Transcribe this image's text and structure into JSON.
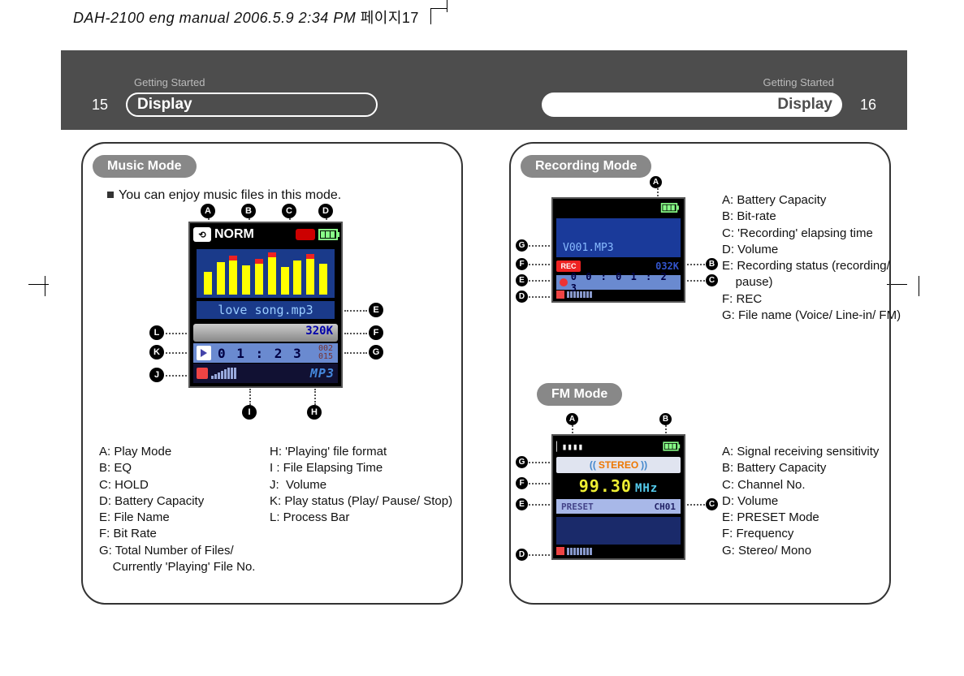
{
  "header_file": "DAH-2100 eng manual  2006.5.9 2:34 PM",
  "header_page": "페이지17",
  "section": "Getting Started",
  "display": "Display",
  "page_left_no": "15",
  "page_right_no": "16",
  "music": {
    "title": "Music Mode",
    "intro": "You can enjoy music files in this mode.",
    "norm": "NORM",
    "filename": "love song.mp3",
    "bitrate": "320K",
    "time": "0 1 : 2 3",
    "count_top": "002",
    "count_bot": "015",
    "mp3": "MP3",
    "legend_left": "A: Play Mode\nB: EQ\nC: HOLD\nD: Battery Capacity\nE: File Name\nF: Bit Rate\nG: Total Number of Files/\n    Currently 'Playing' File No.",
    "legend_right": "H: 'Playing' file format\nI : File Elapsing Time\nJ:  Volume\nK: Play status (Play/ Pause/ Stop)\nL: Process Bar",
    "eq_heights": [
      28,
      40,
      48,
      36,
      44,
      52,
      34,
      42,
      50,
      38
    ],
    "eq_red": [
      0,
      0,
      1,
      0,
      1,
      1,
      0,
      0,
      1,
      0
    ]
  },
  "rec": {
    "title": "Recording Mode",
    "filename": "V001.MP3",
    "rec_label": "REC",
    "bitrate": "032K",
    "time": "0 0 : 0 1 : 2 3",
    "legend": "A: Battery Capacity\nB: Bit-rate\nC: 'Recording' elapsing time\nD: Volume\nE: Recording status (recording/\n    pause)\nF: REC\nG: File name (Voice/ Line-in/ FM)"
  },
  "fm": {
    "title": "FM Mode",
    "stereo": "STEREO",
    "freq": "99.30",
    "mhz": "MHz",
    "preset": "PRESET",
    "ch": "CH01",
    "legend": "A: Signal receiving sensitivity\nB: Battery Capacity\nC: Channel No.\nD: Volume\nE: PRESET Mode\nF: Frequency\nG: Stereo/ Mono"
  },
  "labels": {
    "A": "A",
    "B": "B",
    "C": "C",
    "D": "D",
    "E": "E",
    "F": "F",
    "G": "G",
    "H": "H",
    "I": "I",
    "J": "J",
    "K": "K",
    "L": "L"
  }
}
